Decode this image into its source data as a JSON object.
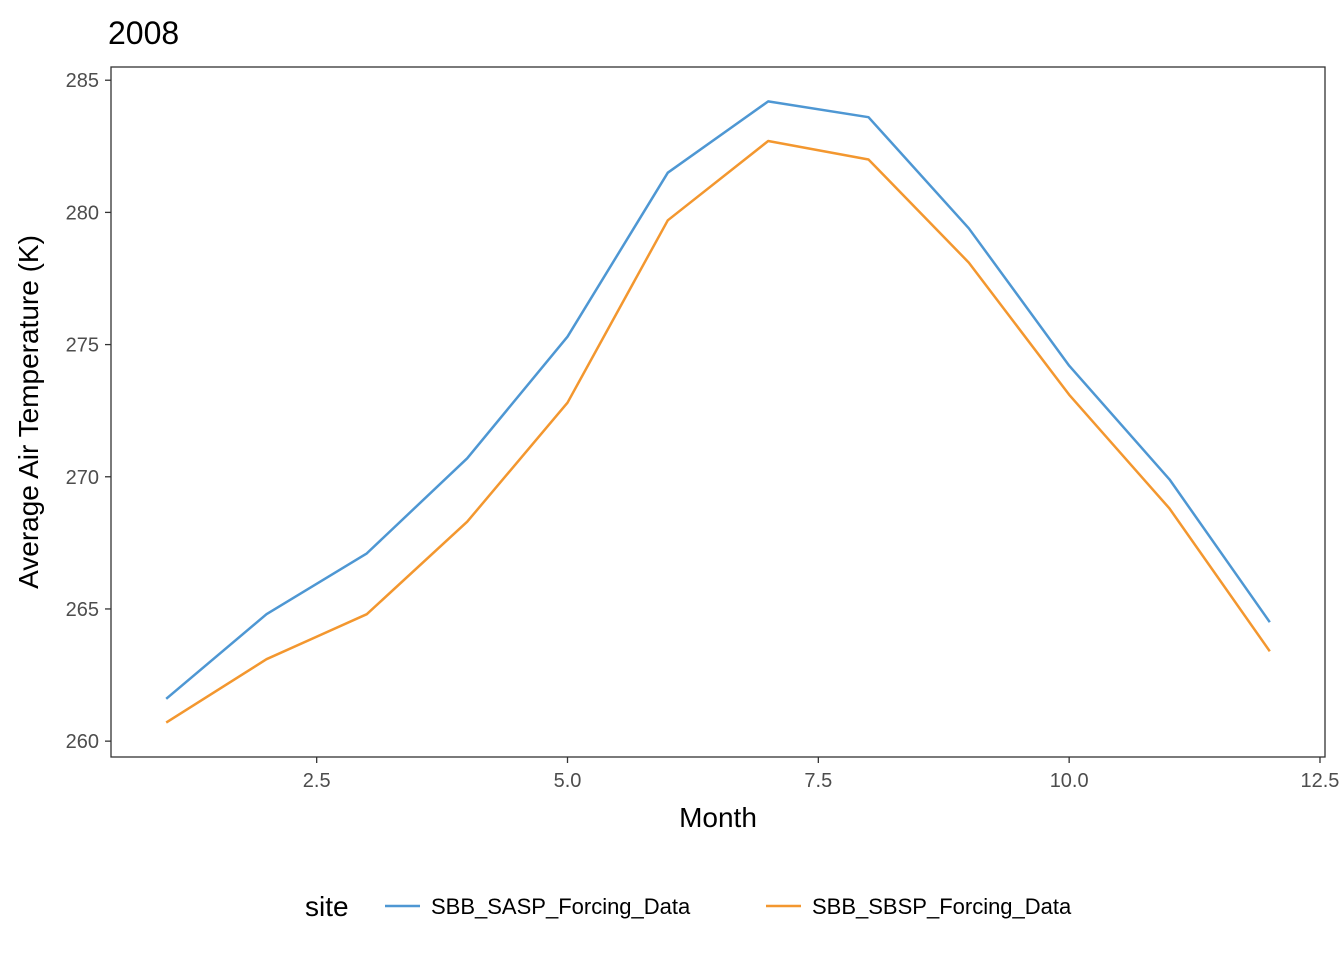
{
  "chart_data": {
    "type": "line",
    "title": "2008",
    "xlabel": "Month",
    "ylabel": "Average Air Temperature (K)",
    "xlim": [
      0.45,
      12.55
    ],
    "ylim": [
      259.4,
      285.5
    ],
    "xticks": [
      2.5,
      5.0,
      7.5,
      10.0,
      12.5
    ],
    "xtick_labels": [
      "2.5",
      "5.0",
      "7.5",
      "10.0",
      "12.5"
    ],
    "yticks": [
      260,
      265,
      270,
      275,
      280,
      285
    ],
    "ytick_labels": [
      "260",
      "265",
      "270",
      "275",
      "280",
      "285"
    ],
    "grid": false,
    "legend": {
      "title": "site",
      "position": "bottom"
    },
    "x": [
      1,
      2,
      3,
      4,
      5,
      6,
      7,
      8,
      9,
      10,
      11,
      12
    ],
    "series": [
      {
        "name": "SBB_SASP_Forcing_Data",
        "color": "#4e97d3",
        "values": [
          261.6,
          264.8,
          267.1,
          270.7,
          275.3,
          281.5,
          284.2,
          283.6,
          279.4,
          274.2,
          269.9,
          264.5
        ]
      },
      {
        "name": "SBB_SBSP_Forcing_Data",
        "color": "#f3972f",
        "values": [
          260.7,
          263.1,
          264.8,
          268.3,
          272.8,
          279.7,
          282.7,
          282.0,
          278.1,
          273.1,
          268.8,
          263.4
        ]
      }
    ]
  }
}
